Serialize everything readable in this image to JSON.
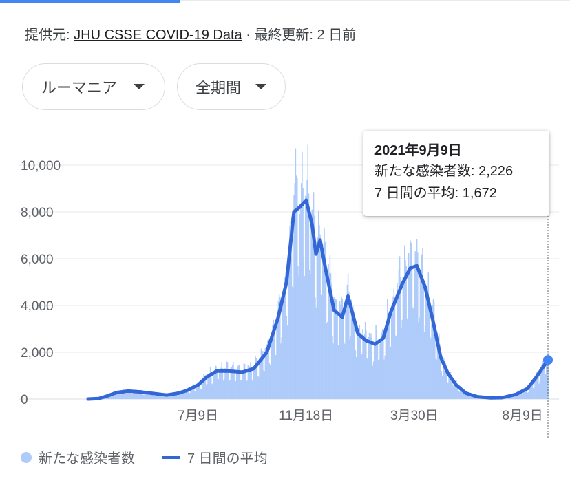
{
  "header": {
    "source_prefix": "提供元: ",
    "source_link": "JHU CSSE COVID-19 Data",
    "source_suffix": " · 最終更新: 2 日前"
  },
  "filters": {
    "country": "ルーマニア",
    "period": "全期間"
  },
  "tooltip": {
    "date": "2021年9月9日",
    "new_cases_label": "新たな感染者数: ",
    "new_cases_value": "2,226",
    "avg_label": "7 日間の平均: ",
    "avg_value": "1,672"
  },
  "legend": {
    "bars_label": "新たな感染者数",
    "line_label": "7 日間の平均"
  },
  "colors": {
    "bars": "#aecbfa",
    "line": "#3367d6",
    "accent": "#4285f4",
    "gridline": "#e8eaed"
  },
  "chart_data": {
    "type": "bar",
    "x_start": "2020-02-26",
    "x_end": "2021-09-09",
    "ylim": [
      0,
      10000
    ],
    "yticks": [
      {
        "value": 0,
        "label": "0"
      },
      {
        "value": 2000,
        "label": "2,000"
      },
      {
        "value": 4000,
        "label": "4,000"
      },
      {
        "value": 6000,
        "label": "6,000"
      },
      {
        "value": 8000,
        "label": "8,000"
      },
      {
        "value": 10000,
        "label": "10,000"
      }
    ],
    "xticks": [
      {
        "date": "2020-07-09",
        "label": "7月9日"
      },
      {
        "date": "2020-11-18",
        "label": "11月18日"
      },
      {
        "date": "2021-03-30",
        "label": "3月30日"
      },
      {
        "date": "2021-08-09",
        "label": "8月9日"
      }
    ],
    "avg_series": {
      "name": "7 日間の平均",
      "points": [
        [
          "2020-02-26",
          0
        ],
        [
          "2020-03-10",
          20
        ],
        [
          "2020-03-20",
          130
        ],
        [
          "2020-04-01",
          280
        ],
        [
          "2020-04-15",
          340
        ],
        [
          "2020-05-01",
          300
        ],
        [
          "2020-05-15",
          240
        ],
        [
          "2020-06-01",
          170
        ],
        [
          "2020-06-15",
          250
        ],
        [
          "2020-06-25",
          360
        ],
        [
          "2020-07-09",
          600
        ],
        [
          "2020-07-20",
          950
        ],
        [
          "2020-08-01",
          1200
        ],
        [
          "2020-08-15",
          1200
        ],
        [
          "2020-09-01",
          1150
        ],
        [
          "2020-09-15",
          1300
        ],
        [
          "2020-10-01",
          2000
        ],
        [
          "2020-10-15",
          3500
        ],
        [
          "2020-10-25",
          5000
        ],
        [
          "2020-11-03",
          8000
        ],
        [
          "2020-11-10",
          8200
        ],
        [
          "2020-11-18",
          8500
        ],
        [
          "2020-11-25",
          7500
        ],
        [
          "2020-11-30",
          6200
        ],
        [
          "2020-12-05",
          6800
        ],
        [
          "2020-12-12",
          5500
        ],
        [
          "2020-12-22",
          3800
        ],
        [
          "2021-01-01",
          3500
        ],
        [
          "2021-01-08",
          4400
        ],
        [
          "2021-01-20",
          2800
        ],
        [
          "2021-01-30",
          2500
        ],
        [
          "2021-02-10",
          2350
        ],
        [
          "2021-02-20",
          2600
        ],
        [
          "2021-03-01",
          3700
        ],
        [
          "2021-03-15",
          4900
        ],
        [
          "2021-03-25",
          5600
        ],
        [
          "2021-04-02",
          5700
        ],
        [
          "2021-04-12",
          4800
        ],
        [
          "2021-04-22",
          3300
        ],
        [
          "2021-05-01",
          1800
        ],
        [
          "2021-05-10",
          1100
        ],
        [
          "2021-05-20",
          600
        ],
        [
          "2021-06-01",
          250
        ],
        [
          "2021-06-15",
          100
        ],
        [
          "2021-07-01",
          50
        ],
        [
          "2021-07-15",
          60
        ],
        [
          "2021-08-01",
          200
        ],
        [
          "2021-08-15",
          450
        ],
        [
          "2021-08-25",
          900
        ],
        [
          "2021-09-09",
          1672
        ]
      ]
    },
    "highlight": {
      "date": "2021-09-09",
      "new_cases": 2226,
      "avg": 1672
    }
  }
}
